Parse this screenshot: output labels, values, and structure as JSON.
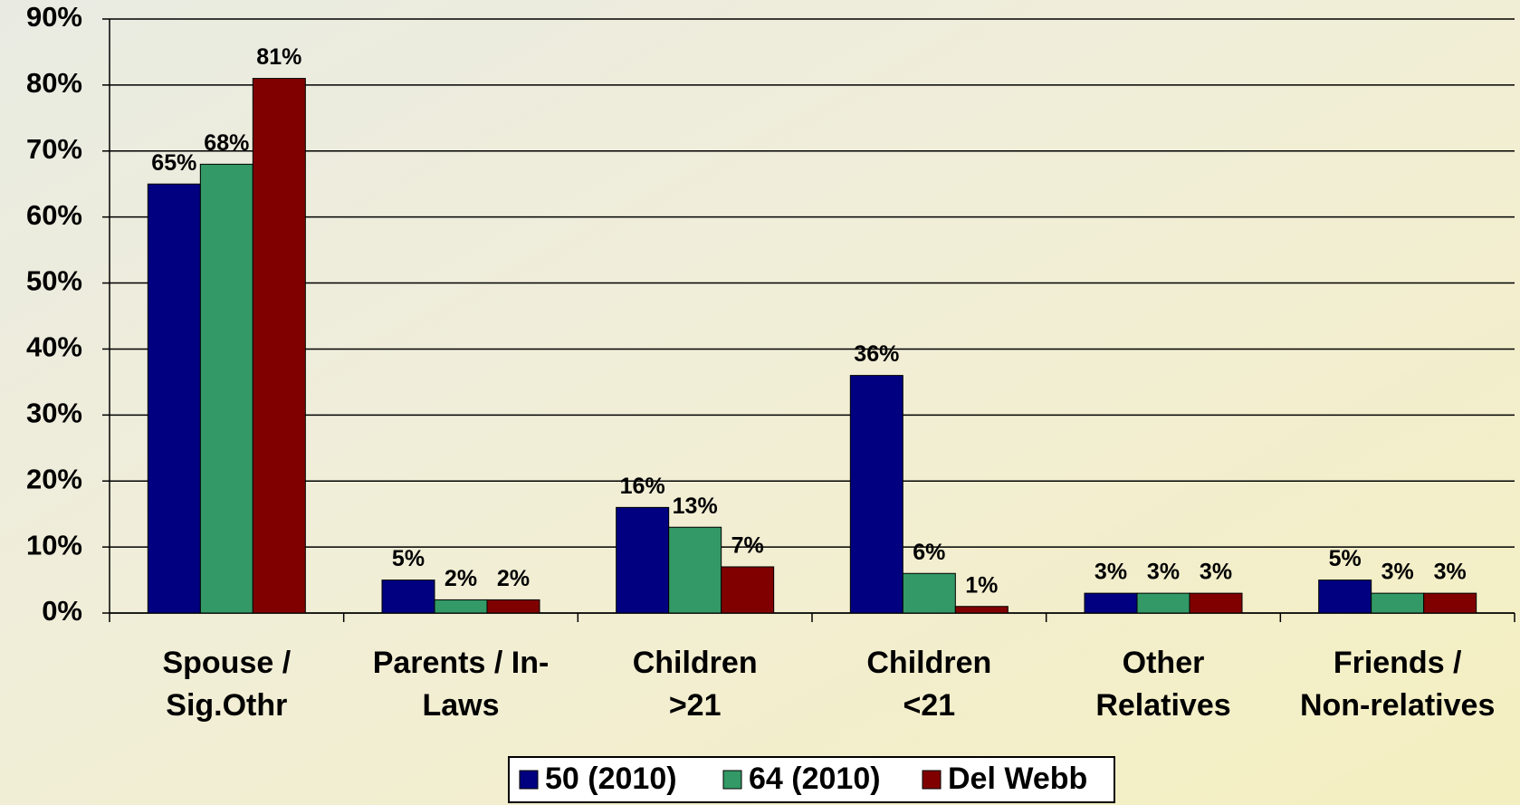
{
  "chart_data": {
    "type": "bar",
    "categories": [
      [
        "Spouse /",
        "Sig.Othr"
      ],
      [
        "Parents / In-",
        "Laws"
      ],
      [
        "Children",
        ">21"
      ],
      [
        "Children",
        "<21"
      ],
      [
        "Other",
        "Relatives"
      ],
      [
        "Friends /",
        "Non-relatives"
      ]
    ],
    "series": [
      {
        "name": "50 (2010)",
        "color": "#000080",
        "values": [
          65,
          5,
          16,
          36,
          3,
          5
        ],
        "value_labels": [
          "65%",
          "5%",
          "16%",
          "36%",
          "3%",
          "5%"
        ]
      },
      {
        "name": "64 (2010)",
        "color": "#339966",
        "values": [
          68,
          2,
          13,
          6,
          3,
          3
        ],
        "value_labels": [
          "68%",
          "2%",
          "13%",
          "6%",
          "3%",
          "3%"
        ]
      },
      {
        "name": "Del Webb",
        "color": "#800000",
        "values": [
          81,
          2,
          7,
          1,
          3,
          3
        ],
        "value_labels": [
          "81%",
          "2%",
          "7%",
          "1%",
          "3%",
          "3%"
        ]
      }
    ],
    "ylim": [
      0,
      90
    ],
    "yticks": [
      {
        "value": 0,
        "label": "0%"
      },
      {
        "value": 10,
        "label": "10%"
      },
      {
        "value": 20,
        "label": "20%"
      },
      {
        "value": 30,
        "label": "30%"
      },
      {
        "value": 40,
        "label": "40%"
      },
      {
        "value": 50,
        "label": "50%"
      },
      {
        "value": 60,
        "label": "60%"
      },
      {
        "value": 70,
        "label": "70%"
      },
      {
        "value": 80,
        "label": "80%"
      },
      {
        "value": 90,
        "label": "90%"
      }
    ],
    "grid": true,
    "legend": "bottom"
  }
}
